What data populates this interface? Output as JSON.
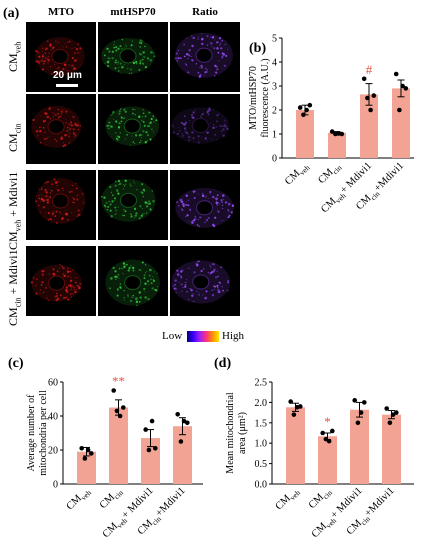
{
  "panels": {
    "a": {
      "letter": "(a)",
      "column_headers": [
        "MTO",
        "mtHSP70",
        "Ratio"
      ],
      "rows": [
        {
          "label_main": "CM",
          "label_sub": "veh",
          "label_suffix": ""
        },
        {
          "label_main": "CM",
          "label_sub": "cin",
          "label_suffix": ""
        },
        {
          "label_main": "CM",
          "label_sub": "veh",
          "label_suffix": " + Mdivi1"
        },
        {
          "label_main": "CM",
          "label_sub": "cin",
          "label_suffix": " + Mdivi1"
        }
      ],
      "scale_bar_label": "20 μm",
      "colorbar_low": "Low",
      "colorbar_high": "High",
      "channel_colors": {
        "MTO": "#d21a1a",
        "mtHSP70": "#2fc23a",
        "Ratio": "#9a4cff"
      }
    }
  },
  "chart_data": [
    {
      "panel": "(b)",
      "type": "bar",
      "categories": [
        {
          "main": "CM",
          "sub": "veh",
          "suffix": ""
        },
        {
          "main": "CM",
          "sub": "cin",
          "suffix": ""
        },
        {
          "main": "CM",
          "sub": "veh",
          "suffix": "+ Mdivi1"
        },
        {
          "main": "CM",
          "sub": "cin",
          "suffix": "+Mdivi1"
        }
      ],
      "values": [
        2.0,
        1.05,
        2.65,
        2.9
      ],
      "errors": [
        0.2,
        0.05,
        0.45,
        0.35
      ],
      "points": [
        [
          2.1,
          1.8,
          2.0,
          2.2
        ],
        [
          1.1,
          1.0,
          1.02,
          1.0
        ],
        [
          3.3,
          2.5,
          2.0,
          2.6
        ],
        [
          3.5,
          2.0,
          3.0,
          2.9
        ]
      ],
      "ylabel": [
        "MTO/mtHSP70",
        "fluorescence (A.U.)"
      ],
      "ylim": [
        0,
        5
      ],
      "yticks": [
        0,
        1,
        2,
        3,
        4,
        5
      ],
      "annotations": [
        {
          "category_index": 2,
          "text": "#"
        }
      ],
      "bar_color": "#f3a393",
      "annotation_color": "#e2553f"
    },
    {
      "panel": "(c)",
      "type": "bar",
      "categories": [
        {
          "main": "CM",
          "sub": "veh",
          "suffix": ""
        },
        {
          "main": "CM",
          "sub": "cin",
          "suffix": ""
        },
        {
          "main": "CM",
          "sub": "veh",
          "suffix": "+ Mdivi1"
        },
        {
          "main": "CM",
          "sub": "cin",
          "suffix": "+Mdivi1"
        }
      ],
      "values": [
        19,
        45,
        27,
        34
      ],
      "errors": [
        2.5,
        4.5,
        5,
        5
      ],
      "points": [
        [
          21,
          15,
          20,
          18
        ],
        [
          55,
          43,
          40,
          45
        ],
        [
          32,
          20,
          37,
          21
        ],
        [
          41,
          25,
          37,
          36
        ]
      ],
      "ylabel": [
        "Average number of",
        "mitochondria per cell"
      ],
      "ylim": [
        0,
        60
      ],
      "yticks": [
        0,
        20,
        40,
        60
      ],
      "annotations": [
        {
          "category_index": 1,
          "text": "**"
        }
      ],
      "bar_color": "#f3a393",
      "annotation_color": "#e2553f"
    },
    {
      "panel": "(d)",
      "type": "bar",
      "categories": [
        {
          "main": "CM",
          "sub": "veh",
          "suffix": ""
        },
        {
          "main": "CM",
          "sub": "cin",
          "suffix": ""
        },
        {
          "main": "CM",
          "sub": "veh",
          "suffix": "+ Mdivi1"
        },
        {
          "main": "CM",
          "sub": "cin",
          "suffix": "+Mdivi1"
        }
      ],
      "values": [
        1.88,
        1.17,
        1.82,
        1.7
      ],
      "errors": [
        0.1,
        0.08,
        0.18,
        0.1
      ],
      "points": [
        [
          2.02,
          1.7,
          1.88,
          1.9
        ],
        [
          1.25,
          1.1,
          1.05,
          1.3
        ],
        [
          2.05,
          1.5,
          1.75,
          2.0
        ],
        [
          1.85,
          1.5,
          1.7,
          1.75
        ]
      ],
      "ylabel": [
        "Mean mitochondrial",
        "area (μm²)"
      ],
      "ylim": [
        0,
        2.5
      ],
      "yticks": [
        0,
        0.5,
        1.0,
        1.5,
        2.0,
        2.5
      ],
      "ytick_labels": [
        "0.0",
        "0.5",
        "1.0",
        "1.5",
        "2.0",
        "2.5"
      ],
      "annotations": [
        {
          "category_index": 1,
          "text": "*"
        }
      ],
      "bar_color": "#f3a393",
      "annotation_color": "#e2553f"
    }
  ]
}
